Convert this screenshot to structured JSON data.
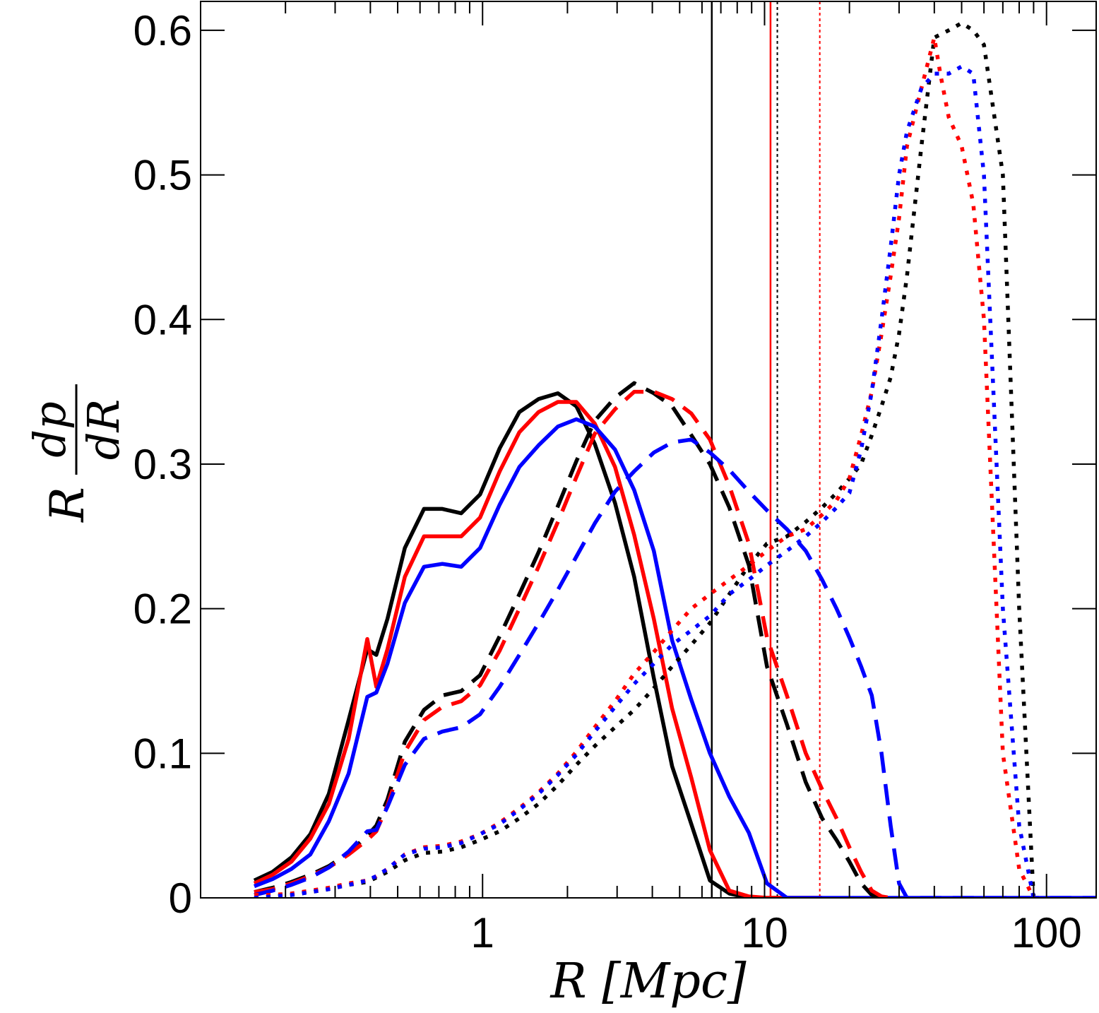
{
  "chart_data": {
    "type": "line",
    "title": "",
    "xscale": "log",
    "xlim": [
      0.1,
      150
    ],
    "ylim": [
      0,
      0.62
    ],
    "xlabel": "R [Mpc]",
    "ylabel": {
      "prefix": "R",
      "numerator": "dp",
      "denominator": "dR"
    },
    "x_ticks": [
      {
        "value": 1,
        "label": "1"
      },
      {
        "value": 10,
        "label": "10"
      },
      {
        "value": 100,
        "label": "100"
      }
    ],
    "y_ticks": [
      {
        "value": 0,
        "label": "0"
      },
      {
        "value": 0.1,
        "label": "0.1"
      },
      {
        "value": 0.2,
        "label": "0.2"
      },
      {
        "value": 0.3,
        "label": "0.3"
      },
      {
        "value": 0.4,
        "label": "0.4"
      },
      {
        "value": 0.5,
        "label": "0.5"
      },
      {
        "value": 0.6,
        "label": "0.6"
      }
    ],
    "colors": {
      "black": "#000000",
      "red": "#ff0000",
      "blue": "#0000ff"
    },
    "vlines": [
      {
        "x": 6.5,
        "color": "#000000",
        "style": "solid"
      },
      {
        "x": 10.5,
        "color": "#ff0000",
        "style": "solid"
      },
      {
        "x": 11.1,
        "color": "#000000",
        "style": "dotted"
      },
      {
        "x": 15.7,
        "color": "#ff0000",
        "style": "dotted"
      }
    ],
    "series": [
      {
        "name": "black-solid",
        "color": "#000000",
        "style": "solid",
        "x": [
          0.155,
          0.18,
          0.21,
          0.245,
          0.285,
          0.335,
          0.39,
          0.42,
          0.46,
          0.53,
          0.62,
          0.72,
          0.84,
          0.98,
          1.15,
          1.35,
          1.58,
          1.85,
          2.15,
          2.5,
          2.95,
          3.45,
          4.05,
          4.7,
          5.5,
          6.4,
          7.5,
          8.8,
          10.2,
          12.0,
          14.0,
          16.0
        ],
        "values": [
          0.012,
          0.018,
          0.028,
          0.044,
          0.072,
          0.123,
          0.172,
          0.168,
          0.193,
          0.242,
          0.269,
          0.269,
          0.266,
          0.279,
          0.311,
          0.336,
          0.345,
          0.349,
          0.34,
          0.314,
          0.273,
          0.222,
          0.152,
          0.091,
          0.051,
          0.012,
          0.003,
          0.0,
          0.0,
          0.0,
          0.0,
          0.0
        ]
      },
      {
        "name": "red-solid",
        "color": "#ff0000",
        "style": "solid",
        "x": [
          0.155,
          0.18,
          0.21,
          0.245,
          0.285,
          0.335,
          0.39,
          0.42,
          0.46,
          0.53,
          0.62,
          0.72,
          0.84,
          0.98,
          1.15,
          1.35,
          1.58,
          1.85,
          2.15,
          2.5,
          2.95,
          3.45,
          4.05,
          4.7,
          5.5,
          6.4,
          7.5,
          8.8,
          10.2,
          12.0,
          14.0,
          16.0
        ],
        "values": [
          0.01,
          0.016,
          0.025,
          0.041,
          0.065,
          0.11,
          0.179,
          0.146,
          0.172,
          0.222,
          0.25,
          0.25,
          0.25,
          0.263,
          0.295,
          0.322,
          0.336,
          0.343,
          0.343,
          0.328,
          0.298,
          0.251,
          0.193,
          0.131,
          0.083,
          0.033,
          0.005,
          0.001,
          0.0,
          0.0,
          0.0,
          0.0
        ]
      },
      {
        "name": "blue-solid",
        "color": "#0000ff",
        "style": "solid",
        "x": [
          0.155,
          0.18,
          0.21,
          0.245,
          0.285,
          0.335,
          0.39,
          0.42,
          0.46,
          0.53,
          0.62,
          0.72,
          0.84,
          0.98,
          1.15,
          1.35,
          1.58,
          1.85,
          2.15,
          2.5,
          2.95,
          3.45,
          4.05,
          4.7,
          5.5,
          6.4,
          7.5,
          8.8,
          10.2,
          12.0,
          14.0,
          16.0,
          18.0,
          100,
          150
        ],
        "values": [
          0.008,
          0.013,
          0.02,
          0.03,
          0.053,
          0.086,
          0.139,
          0.142,
          0.162,
          0.204,
          0.229,
          0.231,
          0.229,
          0.242,
          0.272,
          0.298,
          0.313,
          0.326,
          0.331,
          0.326,
          0.31,
          0.282,
          0.24,
          0.178,
          0.137,
          0.1,
          0.07,
          0.045,
          0.01,
          0.0,
          0.0,
          0.0,
          0.0,
          0.0,
          0.0
        ]
      },
      {
        "name": "black-dashed",
        "color": "#000000",
        "style": "dashed",
        "x": [
          0.155,
          0.18,
          0.21,
          0.245,
          0.285,
          0.335,
          0.39,
          0.42,
          0.46,
          0.53,
          0.62,
          0.72,
          0.84,
          0.98,
          1.15,
          1.35,
          1.58,
          1.85,
          2.15,
          2.5,
          2.95,
          3.45,
          4.05,
          4.7,
          5.5,
          6.4,
          7.5,
          8.8,
          10.2,
          12.0,
          14.0,
          16.0,
          18.0,
          20.0,
          22.0,
          24.0,
          26.0
        ],
        "values": [
          0.004,
          0.007,
          0.011,
          0.016,
          0.022,
          0.031,
          0.043,
          0.05,
          0.068,
          0.108,
          0.13,
          0.14,
          0.143,
          0.154,
          0.181,
          0.21,
          0.239,
          0.271,
          0.302,
          0.33,
          0.346,
          0.356,
          0.349,
          0.34,
          0.32,
          0.3,
          0.27,
          0.23,
          0.16,
          0.12,
          0.08,
          0.055,
          0.04,
          0.025,
          0.01,
          0.002,
          0.0
        ]
      },
      {
        "name": "red-dashed",
        "color": "#ff0000",
        "style": "dashed",
        "x": [
          0.155,
          0.18,
          0.21,
          0.245,
          0.285,
          0.335,
          0.39,
          0.42,
          0.46,
          0.53,
          0.62,
          0.72,
          0.84,
          0.98,
          1.15,
          1.35,
          1.58,
          1.85,
          2.15,
          2.5,
          2.95,
          3.45,
          4.05,
          4.7,
          5.5,
          6.4,
          7.5,
          8.8,
          10.2,
          12.0,
          14.0,
          16.0,
          18.0,
          20.0,
          22.0,
          24.0,
          26.0,
          28.0,
          30.0
        ],
        "values": [
          0.004,
          0.006,
          0.01,
          0.015,
          0.021,
          0.03,
          0.04,
          0.046,
          0.064,
          0.101,
          0.123,
          0.132,
          0.136,
          0.147,
          0.171,
          0.2,
          0.229,
          0.26,
          0.291,
          0.321,
          0.338,
          0.35,
          0.35,
          0.345,
          0.335,
          0.317,
          0.285,
          0.245,
          0.18,
          0.14,
          0.1,
          0.075,
          0.055,
          0.035,
          0.018,
          0.005,
          0.001,
          0.0,
          0.0
        ]
      },
      {
        "name": "blue-dashed",
        "color": "#0000ff",
        "style": "dashed",
        "x": [
          0.155,
          0.18,
          0.21,
          0.245,
          0.285,
          0.335,
          0.39,
          0.42,
          0.46,
          0.53,
          0.62,
          0.72,
          0.84,
          0.98,
          1.15,
          1.35,
          1.58,
          1.85,
          2.15,
          2.5,
          2.95,
          3.45,
          4.05,
          4.7,
          5.5,
          6.4,
          7.5,
          8.8,
          10.2,
          12.0,
          14.0,
          16.0,
          18.0,
          20.0,
          22.0,
          24.0,
          26.0,
          28.0,
          30.0,
          32.0,
          40.0,
          150.0
        ],
        "values": [
          0.002,
          0.005,
          0.009,
          0.014,
          0.021,
          0.032,
          0.046,
          0.047,
          0.063,
          0.092,
          0.11,
          0.115,
          0.118,
          0.127,
          0.146,
          0.168,
          0.19,
          0.213,
          0.236,
          0.259,
          0.281,
          0.295,
          0.308,
          0.315,
          0.317,
          0.308,
          0.296,
          0.281,
          0.268,
          0.255,
          0.24,
          0.22,
          0.2,
          0.18,
          0.16,
          0.14,
          0.1,
          0.05,
          0.01,
          0.0,
          0.0,
          0.0
        ]
      },
      {
        "name": "black-dotted",
        "color": "#000000",
        "style": "dotted",
        "x": [
          0.155,
          0.18,
          0.21,
          0.245,
          0.285,
          0.335,
          0.39,
          0.42,
          0.46,
          0.53,
          0.62,
          0.72,
          0.84,
          0.98,
          1.15,
          1.35,
          1.58,
          1.85,
          2.15,
          2.5,
          2.95,
          3.45,
          4.05,
          4.7,
          5.5,
          6.4,
          7.5,
          8.8,
          10.2,
          12.0,
          14.0,
          16.0,
          18.0,
          20.0,
          22.0,
          24.0,
          26.0,
          28.0,
          30.0,
          32.0,
          36.0,
          40.0,
          45.0,
          50.0,
          55.0,
          60.0,
          70.0,
          80.0,
          90.0
        ],
        "values": [
          0.0,
          0.001,
          0.002,
          0.004,
          0.006,
          0.009,
          0.011,
          0.014,
          0.018,
          0.026,
          0.031,
          0.032,
          0.035,
          0.04,
          0.046,
          0.055,
          0.065,
          0.078,
          0.092,
          0.105,
          0.118,
          0.13,
          0.145,
          0.16,
          0.175,
          0.19,
          0.21,
          0.23,
          0.245,
          0.25,
          0.26,
          0.27,
          0.28,
          0.29,
          0.3,
          0.32,
          0.34,
          0.36,
          0.39,
          0.43,
          0.52,
          0.595,
          0.6,
          0.605,
          0.6,
          0.59,
          0.5,
          0.2,
          0.0
        ]
      },
      {
        "name": "red-dotted",
        "color": "#ff0000",
        "style": "dotted",
        "x": [
          0.155,
          0.18,
          0.21,
          0.245,
          0.285,
          0.335,
          0.39,
          0.42,
          0.46,
          0.53,
          0.62,
          0.72,
          0.84,
          0.98,
          1.15,
          1.35,
          1.58,
          1.85,
          2.15,
          2.5,
          2.95,
          3.45,
          4.05,
          4.7,
          5.5,
          6.4,
          7.5,
          8.8,
          10.2,
          12.0,
          14.0,
          16.0,
          18.0,
          20.0,
          22.0,
          24.0,
          26.0,
          28.0,
          30.0,
          32.0,
          36.0,
          40.0,
          42.0,
          45.0,
          50.0,
          55.0,
          60.0,
          70.0,
          80.0,
          90.0
        ],
        "values": [
          0.002,
          0.002,
          0.003,
          0.005,
          0.007,
          0.01,
          0.012,
          0.015,
          0.02,
          0.03,
          0.035,
          0.036,
          0.039,
          0.044,
          0.052,
          0.062,
          0.073,
          0.086,
          0.101,
          0.118,
          0.136,
          0.155,
          0.17,
          0.185,
          0.2,
          0.21,
          0.22,
          0.23,
          0.24,
          0.25,
          0.255,
          0.265,
          0.275,
          0.29,
          0.32,
          0.35,
          0.39,
          0.43,
          0.47,
          0.52,
          0.56,
          0.595,
          0.57,
          0.54,
          0.52,
          0.48,
          0.4,
          0.1,
          0.02,
          0.0
        ]
      },
      {
        "name": "blue-dotted",
        "color": "#0000ff",
        "style": "dotted",
        "x": [
          0.155,
          0.18,
          0.21,
          0.245,
          0.285,
          0.335,
          0.39,
          0.42,
          0.46,
          0.53,
          0.62,
          0.72,
          0.84,
          0.98,
          1.15,
          1.35,
          1.58,
          1.85,
          2.15,
          2.5,
          2.95,
          3.45,
          4.05,
          4.7,
          5.5,
          6.4,
          7.5,
          8.8,
          10.2,
          12.0,
          14.0,
          16.0,
          18.0,
          20.0,
          22.0,
          24.0,
          26.0,
          28.0,
          30.0,
          32.0,
          36.0,
          40.0,
          45.0,
          50.0,
          55.0,
          60.0,
          70.0,
          80.0,
          90.0
        ],
        "values": [
          0.0,
          0.001,
          0.002,
          0.004,
          0.006,
          0.009,
          0.012,
          0.015,
          0.02,
          0.03,
          0.034,
          0.035,
          0.038,
          0.044,
          0.051,
          0.061,
          0.072,
          0.085,
          0.099,
          0.115,
          0.132,
          0.148,
          0.162,
          0.175,
          0.185,
          0.195,
          0.21,
          0.22,
          0.23,
          0.24,
          0.25,
          0.26,
          0.27,
          0.28,
          0.31,
          0.35,
          0.4,
          0.45,
          0.5,
          0.53,
          0.56,
          0.57,
          0.57,
          0.575,
          0.57,
          0.5,
          0.2,
          0.05,
          0.0
        ]
      }
    ]
  }
}
